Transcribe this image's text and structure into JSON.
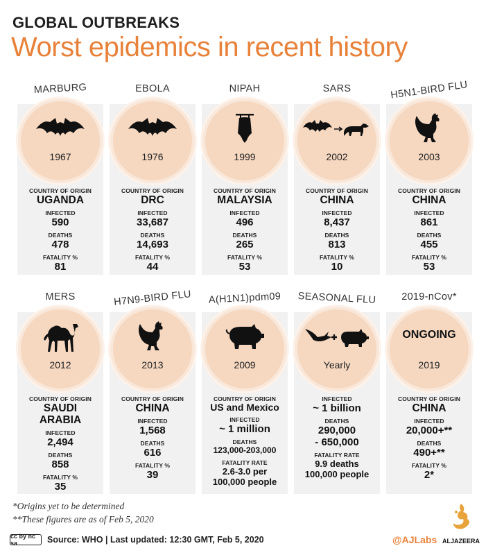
{
  "header": {
    "kicker": "GLOBAL OUTBREAKS",
    "title": "Worst epidemics in recent history"
  },
  "labels": {
    "country": "COUNTRY OF ORIGIN",
    "infected": "INFECTED",
    "deaths": "DEATHS",
    "fatality_pct": "FATALITY %",
    "fatality_rate": "FATALITY RATE"
  },
  "diseases": [
    {
      "name": "MARBURG",
      "year": "1967",
      "icon": "bat-icon",
      "country": "UGANDA",
      "infected": "590",
      "deaths": "478",
      "fatality": "81"
    },
    {
      "name": "EBOLA",
      "year": "1976",
      "icon": "bat-icon",
      "country": "DRC",
      "infected": "33,687",
      "deaths": "14,693",
      "fatality": "44"
    },
    {
      "name": "NIPAH",
      "year": "1999",
      "icon": "hanging-bat-icon",
      "country": "MALAYSIA",
      "infected": "496",
      "deaths": "265",
      "fatality": "53"
    },
    {
      "name": "SARS",
      "year": "2002",
      "icon": "bat-to-civet-icon",
      "country": "CHINA",
      "infected": "8,437",
      "deaths": "813",
      "fatality": "10"
    },
    {
      "name": "H5N1-BIRD FLU",
      "year": "2003",
      "icon": "rooster-icon",
      "country": "CHINA",
      "infected": "861",
      "deaths": "455",
      "fatality": "53"
    },
    {
      "name": "MERS",
      "year": "2012",
      "icon": "camel-icon",
      "country_line1": "SAUDI",
      "country_line2": "ARABIA",
      "infected": "2,494",
      "deaths": "858",
      "fatality": "35"
    },
    {
      "name": "H7N9-BIRD FLU",
      "year": "2013",
      "icon": "rooster-icon",
      "country": "CHINA",
      "infected": "1,568",
      "deaths": "616",
      "fatality": "39"
    },
    {
      "name": "A(H1N1)pdm09",
      "year": "2009",
      "icon": "pig-icon",
      "country": "US and Mexico",
      "infected": "~ 1 million",
      "deaths": "123,000-203,000",
      "fatality_line1": "2.6-3.0 per",
      "fatality_line2": "100,000 people"
    },
    {
      "name": "SEASONAL FLU",
      "year": "Yearly",
      "icon": "bird-and-pig-icon",
      "infected": "~ 1 billion",
      "deaths_line1": "290,000",
      "deaths_line2": "- 650,000",
      "fatality_line1": "9.9 deaths",
      "fatality_line2": "100,000 people"
    },
    {
      "name": "2019-nCov*",
      "year": "2019",
      "status": "ONGOING",
      "country": "CHINA",
      "infected": "20,000+**",
      "deaths": "490+**",
      "fatality": "2*"
    }
  ],
  "footnotes": {
    "note1": "*Origins yet to be determined",
    "note2": "**These figures are as of Feb 5, 2020"
  },
  "footer": {
    "cc_label": "cc by nc sa",
    "source": "Source: WHO  |  Last updated: 12:30 GMT, Feb 5, 2020",
    "handle": "@AJLabs",
    "brand": "ALJAZEERA"
  },
  "colors": {
    "accent": "#e8823a",
    "circle": "#f6d8c1",
    "card": "#f1f1f1"
  }
}
